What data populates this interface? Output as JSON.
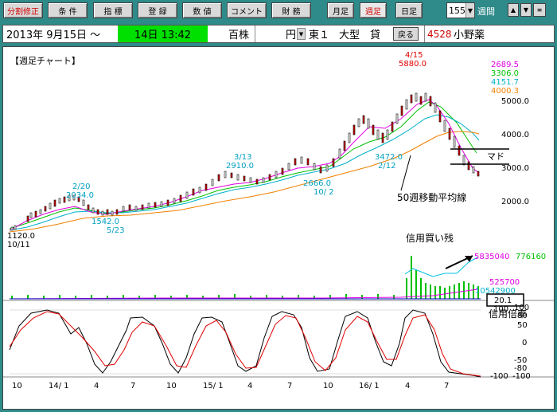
{
  "toolbar": {
    "buttons": [
      {
        "label": "分割修正",
        "red": true
      },
      {
        "label": "条 件"
      },
      {
        "label": "指 標"
      },
      {
        "label": "登 録"
      },
      {
        "label": "数 値"
      },
      {
        "label": "コメント"
      },
      {
        "label": "財 務"
      },
      {
        "label": "月足"
      },
      {
        "label": "週足",
        "selected": true
      },
      {
        "label": "日足"
      }
    ],
    "weeks_value": "155",
    "weeks_label": "週間",
    "up_arrow": "▲",
    "down_arrow": "▼",
    "menu_icon": "≡",
    "dropdown_arrow": "▼"
  },
  "infobar": {
    "date": "2013年  9月15日 ～",
    "time": "14日  13:42",
    "stock": "百株",
    "currency": "円",
    "market": "東１",
    "size": "大型",
    "lending": "貸",
    "back_label": "戻る",
    "code": "4528",
    "name": "小野薬"
  },
  "chart": {
    "title": "【週足チャート】",
    "legend": [
      {
        "value": "2689.5",
        "color": "#e000e0"
      },
      {
        "value": "3306.0",
        "color": "#00c000"
      },
      {
        "value": "4151.7",
        "color": "#00b0c8"
      },
      {
        "value": "4000.3",
        "color": "#f08000"
      }
    ],
    "price_axis": [
      "5000.0",
      "4000.0",
      "3000.0",
      "2000.0"
    ],
    "annotations": {
      "peak_date": "4/15",
      "peak_price": "5880.0",
      "a1_date": "2/20",
      "a1_price": "2034.0",
      "a2_date": "3/13",
      "a2_price": "2910.0",
      "low1_price": "1542.0",
      "low1_date": "5/23",
      "low2_price": "2666.0",
      "low2_date": "10/ 2",
      "low3_price": "3472.0",
      "low3_date": "2/12",
      "start_price": "1120.0",
      "start_date": "10/11",
      "ma_label": "50週移動平均線",
      "madd_label": "マド",
      "credit_label": "信用買い残",
      "ratio_label": "信用倍率"
    },
    "volume_values": {
      "buy": "5835040",
      "buy_color": "#e000e0",
      "vol": "776160",
      "vol_color": "#00c000",
      "sell": "525700",
      "sell_color": "#e000e0",
      "total": "10542900",
      "total_color": "#00b0c8",
      "ratio": "20.1"
    },
    "osc_axis_right": [
      "100",
      "80",
      "50",
      "0",
      "-50",
      "-80",
      "-100"
    ],
    "osc_axis_left": [
      "100",
      "-100"
    ],
    "x_axis": [
      "10",
      "14/ 1",
      "4",
      "7",
      "10",
      "15/ 1",
      "4",
      "7",
      "10",
      "16/ 1",
      "4",
      "7"
    ]
  }
}
